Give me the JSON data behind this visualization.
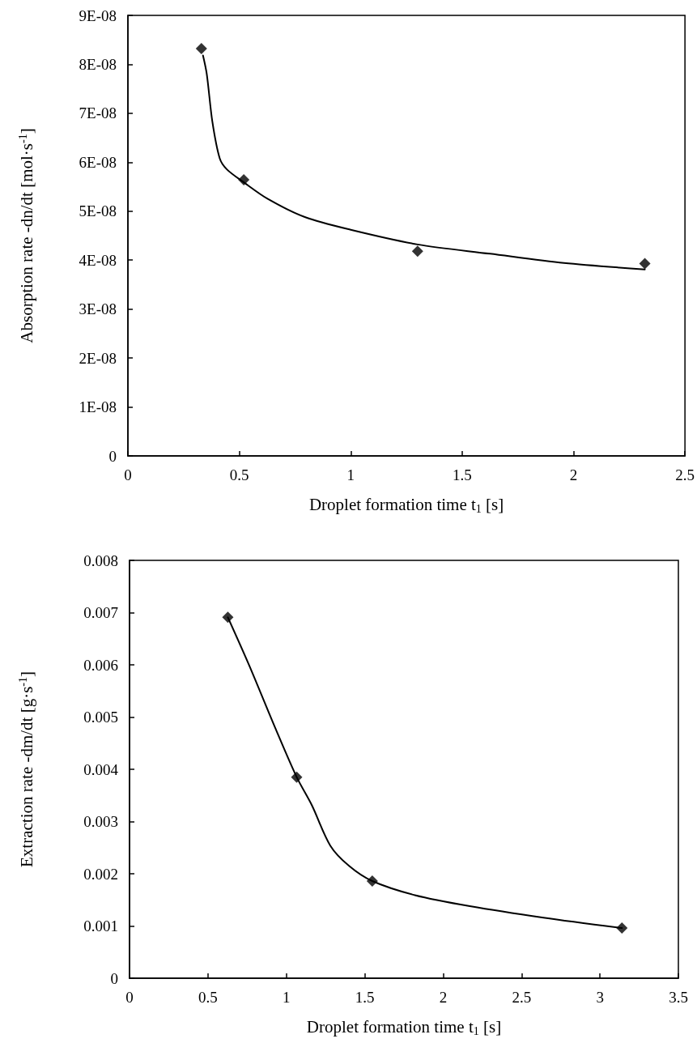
{
  "chart_data": [
    {
      "type": "scatter",
      "xlabel": "Droplet formation time t$_{1}$ [s]",
      "ylabel": "Absorption rate -dn/dt [mol·s$^{-1}$]",
      "xlim": [
        0,
        2.5
      ],
      "xticks": [
        0,
        0.5,
        1,
        1.5,
        2,
        2.5
      ],
      "ylim": [
        0,
        9e-08
      ],
      "yticks": [
        0,
        {
          "value": 1e-08,
          "label": "1E-08"
        },
        {
          "value": 2e-08,
          "label": "2E-08"
        },
        {
          "value": 3e-08,
          "label": "3E-08"
        },
        {
          "value": 4e-08,
          "label": "4E-08"
        },
        {
          "value": 5e-08,
          "label": "5E-08"
        },
        {
          "value": 6e-08,
          "label": "6E-08"
        },
        {
          "value": 7e-08,
          "label": "7E-08"
        },
        {
          "value": 8e-08,
          "label": "8E-08"
        },
        {
          "value": 9e-08,
          "label": "9E-08"
        }
      ],
      "grid": false,
      "marker": "diamond",
      "series": [
        {
          "color": "#000000",
          "x": [
            0.33,
            0.52,
            1.3,
            2.32
          ],
          "values": [
            8.32e-08,
            5.64e-08,
            4.18e-08,
            3.93e-08
          ]
        },
        {
          "type": "line",
          "color": "#000000",
          "marker": "none",
          "line_style": "solid",
          "x": [
            0.337,
            0.354,
            0.379,
            0.412,
            0.445,
            0.52,
            0.628,
            0.794,
            1.0,
            1.3,
            1.625,
            1.957,
            2.32
          ],
          "values": [
            8.18e-08,
            7.8e-08,
            6.83e-08,
            6.08e-08,
            5.85e-08,
            5.59e-08,
            5.25e-08,
            4.88e-08,
            4.62e-08,
            4.32e-08,
            4.13e-08,
            3.94e-08,
            3.81e-08
          ]
        }
      ]
    },
    {
      "type": "scatter",
      "xlabel": "Droplet formation time t$_{1}$ [s]",
      "ylabel": "Extraction rate -dm/dt [g·s$^{-1}$]",
      "xlim": [
        0,
        3.5
      ],
      "xticks": [
        0,
        0.5,
        1,
        1.5,
        2,
        2.5,
        3,
        3.5
      ],
      "ylim": [
        0,
        0.008
      ],
      "yticks": [
        0,
        0.001,
        0.002,
        0.003,
        0.004,
        0.005,
        0.006,
        0.007,
        0.008
      ],
      "grid": false,
      "marker": "diamond",
      "series": [
        {
          "color": "#000000",
          "x": [
            0.627,
            1.066,
            1.548,
            3.14
          ],
          "values": [
            0.00691,
            0.00385,
            0.00186,
            0.00096
          ]
        },
        {
          "type": "line",
          "color": "#000000",
          "marker": "none",
          "line_style": "solid",
          "x": [
            0.627,
            0.763,
            0.928,
            1.066,
            1.163,
            1.28,
            1.4,
            1.548,
            1.82,
            2.17,
            2.64,
            3.14
          ],
          "values": [
            0.00691,
            0.00599,
            0.0048,
            0.00385,
            0.00331,
            0.00254,
            0.00215,
            0.00186,
            0.00159,
            0.00138,
            0.00116,
            0.00096
          ]
        }
      ]
    }
  ]
}
